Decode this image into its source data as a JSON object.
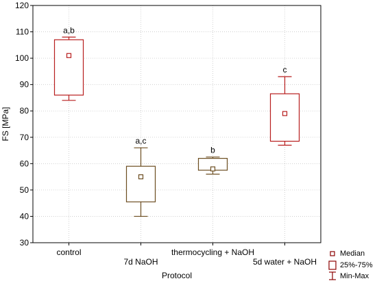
{
  "chart_data": {
    "type": "box",
    "xlabel": "Protocol",
    "ylabel": "FS [MPa]",
    "ylim": [
      30,
      120
    ],
    "yticks": [
      30,
      40,
      50,
      60,
      70,
      80,
      90,
      100,
      110,
      120
    ],
    "grid": true,
    "legend_position": "bottom-right",
    "legend": {
      "median": "Median",
      "box": "25%-75%",
      "whisker": "Min-Max"
    },
    "groups": [
      {
        "label": "control",
        "min": 84,
        "q1": 86,
        "median": 101,
        "q3": 107,
        "max": 108,
        "annotation": "a,b",
        "color": "#b71c1c"
      },
      {
        "label": "7d NaOH",
        "min": 40,
        "q1": 45.5,
        "median": 55,
        "q3": 59,
        "max": 66,
        "annotation": "a,c",
        "color": "#6b4c1f"
      },
      {
        "label": "thermocycling + NaOH",
        "min": 56,
        "q1": 57.5,
        "median": 58,
        "q3": 62,
        "max": 62.5,
        "annotation": "b",
        "color": "#6b4c1f"
      },
      {
        "label": "5d water + NaOH",
        "min": 67,
        "q1": 68.5,
        "median": 79,
        "q3": 86.5,
        "max": 93,
        "annotation": "c",
        "color": "#b71c1c"
      }
    ]
  }
}
